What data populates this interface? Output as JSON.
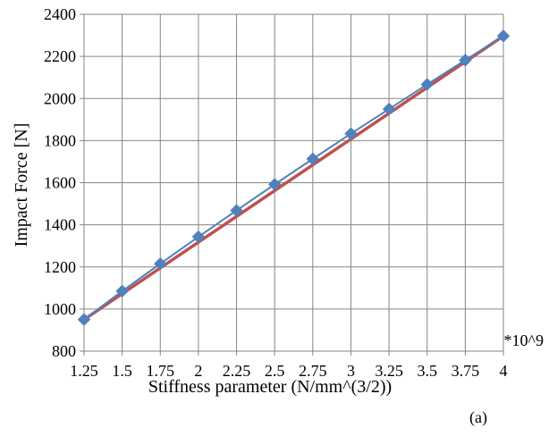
{
  "chart_data": {
    "type": "line",
    "title": "",
    "xlabel": "Stiffness parameter (N/mm^(3/2))",
    "ylabel": "Impact Force  [N]",
    "x_multiplier_label": "*10^9",
    "panel_label": "(a)",
    "x": [
      1.25,
      1.5,
      1.75,
      2,
      2.25,
      2.5,
      2.75,
      3,
      3.25,
      3.5,
      3.75,
      4
    ],
    "x_tick_labels": [
      "1.25",
      "1.5",
      "1.75",
      "2",
      "2.25",
      "2.5",
      "2.75",
      "3",
      "3.25",
      "3.5",
      "3.75",
      "4"
    ],
    "y_ticks": [
      800,
      1000,
      1200,
      1400,
      1600,
      1800,
      2000,
      2200,
      2400
    ],
    "ylim": [
      800,
      2400
    ],
    "grid": true,
    "series": [
      {
        "values": [
          950,
          1085,
          1215,
          1343,
          1468,
          1592,
          1713,
          1833,
          1950,
          2067,
          2182,
          2297
        ],
        "color": "#4f81bd",
        "marker": "diamond"
      }
    ],
    "fit_line": {
      "color": "#c0504d",
      "from": [
        1.25,
        950
      ],
      "to": [
        4,
        2297
      ]
    }
  }
}
